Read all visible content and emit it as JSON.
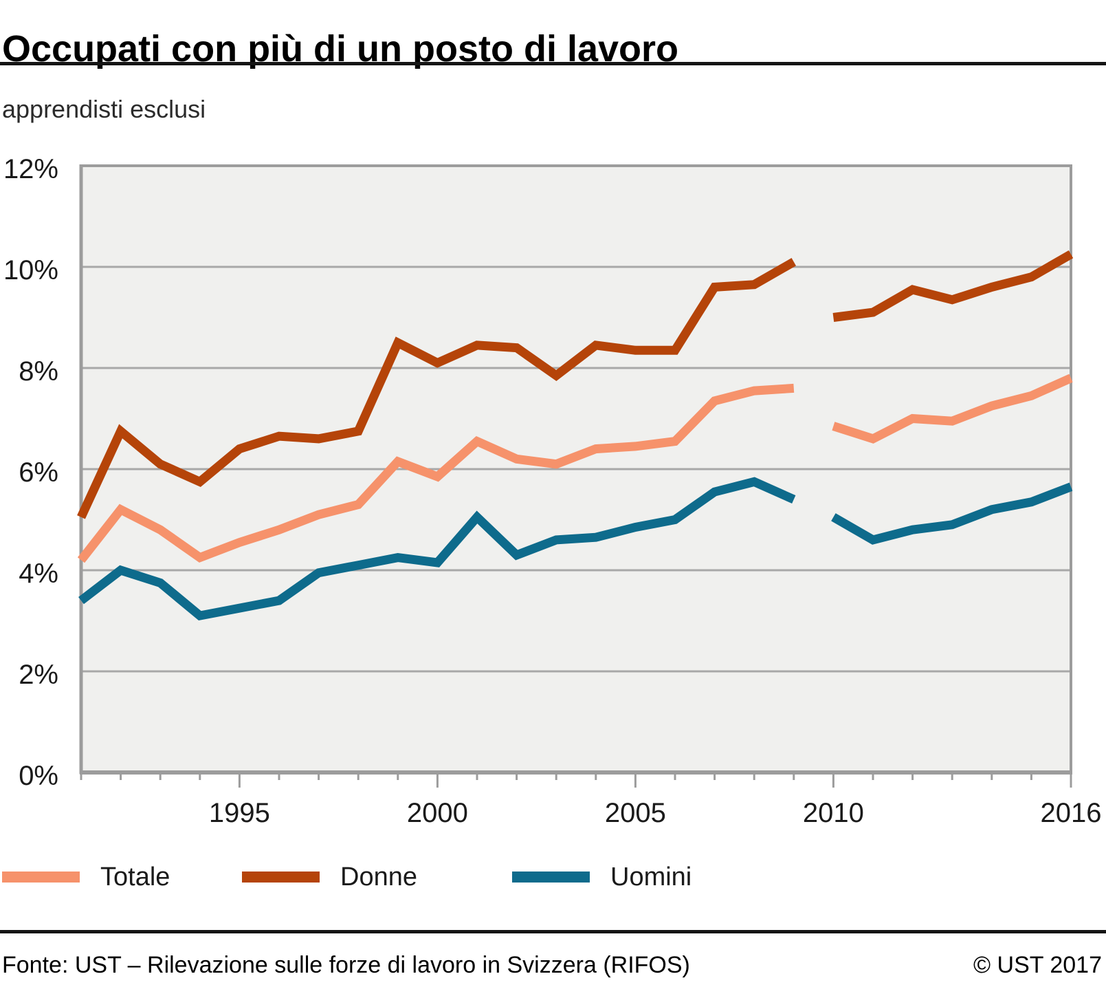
{
  "title": "Occupati con più di un posto di lavoro",
  "subtitle": "apprendisti esclusi",
  "footer": {
    "source": "Fonte: UST – Rilevazione sulle forze di lavoro in Svizzera (RIFOS)",
    "copyright": "© UST 2017"
  },
  "chart_data": {
    "type": "line",
    "title": "Occupati con più di un posto di lavoro",
    "subtitle": "apprendisti esclusi",
    "ylim": [
      0,
      12
    ],
    "y_ticks": [
      0,
      2,
      4,
      6,
      8,
      10,
      12
    ],
    "y_tick_suffix": "%",
    "x_range": [
      1991,
      2016
    ],
    "x_tick_labels": [
      1995,
      2000,
      2005,
      2010,
      2016
    ],
    "x_minor_ticks_every_year": true,
    "grid": true,
    "legend_position": "bottom",
    "plot_bg": "#F0F0EE",
    "grid_color": "#A8A8A8",
    "axis_color": "#9C9C9C",
    "label_color": "#1a1a1a",
    "line_width": 13,
    "series_break_note": "lines interrupted between 2009 and 2010",
    "series": [
      {
        "name": "Totale",
        "color": "#F6926B",
        "segments": [
          {
            "start_year": 1991,
            "values": [
              4.2,
              5.2,
              4.8,
              4.25,
              4.55,
              4.8,
              5.1,
              5.3,
              6.15,
              5.85,
              6.55,
              6.2,
              6.1,
              6.4,
              6.45,
              6.55,
              7.35,
              7.55,
              7.6
            ]
          },
          {
            "start_year": 2010,
            "values": [
              6.85,
              6.6,
              7.0,
              6.95,
              7.25,
              7.45,
              7.8
            ]
          }
        ]
      },
      {
        "name": "Donne",
        "color": "#B54409",
        "segments": [
          {
            "start_year": 1991,
            "values": [
              5.05,
              6.75,
              6.1,
              5.75,
              6.4,
              6.65,
              6.6,
              6.75,
              8.5,
              8.1,
              8.45,
              8.4,
              7.85,
              8.45,
              8.35,
              8.35,
              9.6,
              9.65,
              10.1
            ]
          },
          {
            "start_year": 2010,
            "values": [
              9.0,
              9.1,
              9.55,
              9.35,
              9.6,
              9.8,
              10.25
            ]
          }
        ]
      },
      {
        "name": "Uomini",
        "color": "#0E6B8C",
        "segments": [
          {
            "start_year": 1991,
            "values": [
              3.4,
              4.0,
              3.75,
              3.1,
              3.25,
              3.4,
              3.95,
              4.1,
              4.25,
              4.15,
              5.05,
              4.3,
              4.6,
              4.65,
              4.85,
              5.0,
              5.55,
              5.75,
              5.4
            ]
          },
          {
            "start_year": 2010,
            "values": [
              5.05,
              4.6,
              4.8,
              4.9,
              5.2,
              5.35,
              5.65
            ]
          }
        ]
      }
    ]
  }
}
